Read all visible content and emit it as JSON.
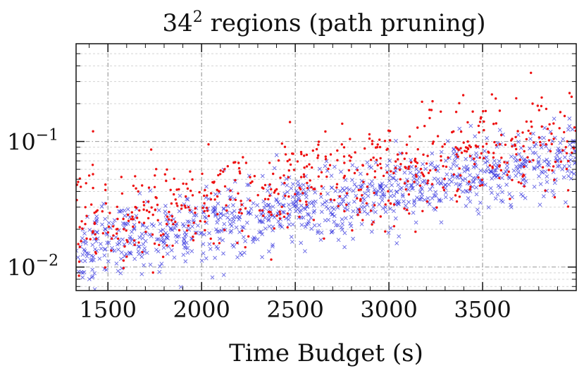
{
  "chart_data": {
    "type": "scatter",
    "title_base": "34",
    "title_sup": "2",
    "title_rest": " regions (path pruning)",
    "xlabel": "Time Budget (s)",
    "ylabel": "",
    "xlim": [
      1330,
      4000
    ],
    "ylim": [
      0.0065,
      0.6
    ],
    "yscale": "log",
    "grid": true,
    "x_ticks": [
      1500,
      2000,
      2500,
      3000,
      3500
    ],
    "x_tick_labels": [
      "1500",
      "2000",
      "2500",
      "3000",
      "3500"
    ],
    "y_ticks": [
      0.01,
      0.1
    ],
    "y_tick_labels": [
      {
        "base": "10",
        "exp": "−2"
      },
      {
        "base": "10",
        "exp": "−1"
      }
    ],
    "series": [
      {
        "name": "series-red-dots",
        "marker": "dot",
        "color": "#ee1111",
        "n_points": 650,
        "trend": {
          "x0": 1330,
          "median_y0": 0.022,
          "x1": 4000,
          "median_y1": 0.11,
          "log_spread_sd": 0.2
        }
      },
      {
        "name": "series-blue-crosses",
        "marker": "x",
        "color": "#3333dd",
        "n_points": 1000,
        "trend": {
          "x0": 1330,
          "median_y0": 0.014,
          "x1": 4000,
          "median_y1": 0.075,
          "log_spread_sd": 0.14
        }
      }
    ]
  }
}
